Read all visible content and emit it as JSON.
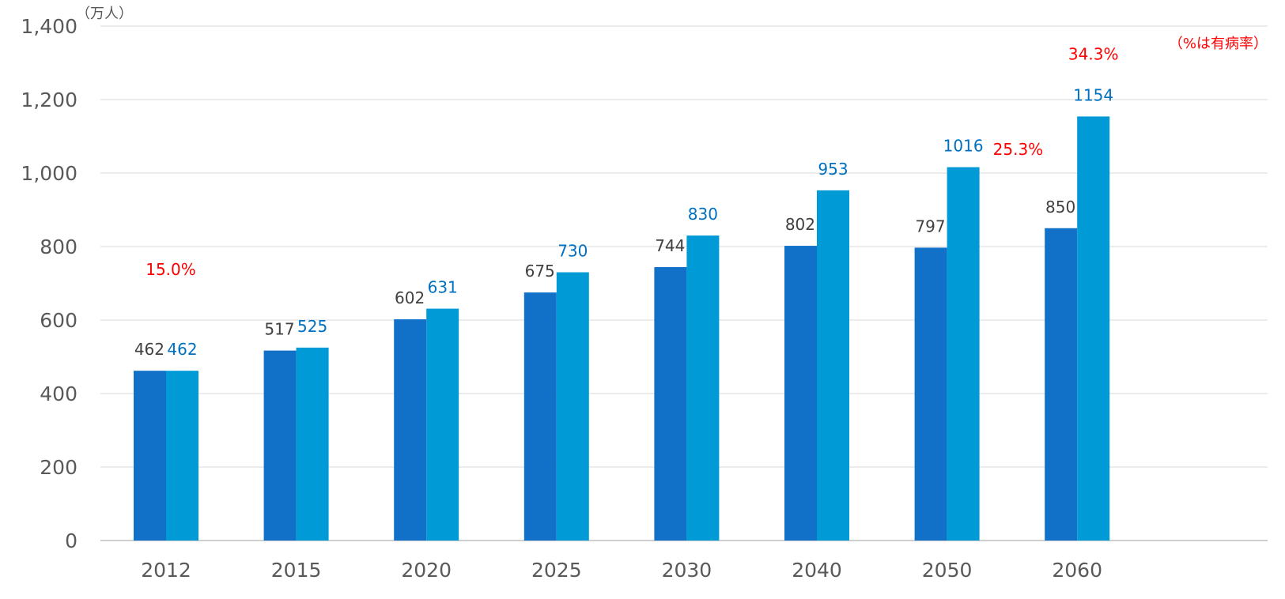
{
  "chart_data": {
    "type": "bar",
    "unit_label": "（万人）",
    "note": "（%は有病率）",
    "categories": [
      "2012",
      "2015",
      "2020",
      "2025",
      "2030",
      "2040",
      "2050",
      "2060"
    ],
    "series": [
      {
        "values": [
          462,
          517,
          602,
          675,
          744,
          802,
          797,
          850
        ],
        "color": "#1170c8"
      },
      {
        "values": [
          462,
          525,
          631,
          730,
          830,
          953,
          1016,
          1154
        ],
        "color": "#009ad6"
      }
    ],
    "percent_annotations": [
      {
        "category": "2012",
        "series": 1,
        "text": "15.0%"
      },
      {
        "category": "2060",
        "series": 0,
        "text": "25.3%"
      },
      {
        "category": "2060",
        "series": 1,
        "text": "34.3%"
      }
    ],
    "ylim": [
      0,
      1400
    ],
    "yticks": [
      0,
      200,
      400,
      600,
      800,
      1000,
      1200,
      1400
    ],
    "ytick_labels": [
      "0",
      "200",
      "400",
      "600",
      "800",
      "1,000",
      "1,200",
      "1,400"
    ],
    "grid": true
  }
}
